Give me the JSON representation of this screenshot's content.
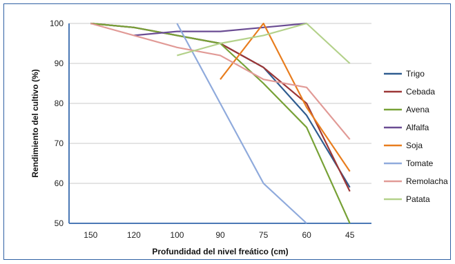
{
  "chart_data": {
    "type": "line",
    "title": "",
    "xlabel": "Profundidad del nivel freático (cm)",
    "ylabel": "Rendimiento del cultivo (%)",
    "categories": [
      "150",
      "120",
      "100",
      "90",
      "75",
      "60",
      "45"
    ],
    "ylim": [
      50,
      100
    ],
    "yticks": [
      50,
      60,
      70,
      80,
      90,
      100
    ],
    "grid": "horizontal",
    "legend_position": "right",
    "series": [
      {
        "name": "Trigo",
        "color": "#2f5c8f",
        "values": [
          100,
          99,
          97,
          95,
          89,
          77,
          59
        ]
      },
      {
        "name": "Cebada",
        "color": "#9c3636",
        "values": [
          100,
          99,
          97,
          95,
          89,
          80,
          58
        ]
      },
      {
        "name": "Avena",
        "color": "#77a136",
        "values": [
          100,
          99,
          97,
          95,
          85,
          74,
          50
        ]
      },
      {
        "name": "Alfalfa",
        "color": "#6a4c93",
        "values": [
          null,
          97,
          98,
          98,
          99,
          100,
          null
        ]
      },
      {
        "name": "Soja",
        "color": "#e87d1e",
        "values": [
          null,
          null,
          null,
          86,
          100,
          79,
          63
        ]
      },
      {
        "name": "Tomate",
        "color": "#8faadc",
        "values": [
          null,
          null,
          100,
          80,
          60,
          50,
          null
        ]
      },
      {
        "name": "Remolacha",
        "color": "#e19a96",
        "values": [
          100,
          97,
          94,
          92,
          86,
          84,
          71
        ]
      },
      {
        "name": "Patata",
        "color": "#b3d18a",
        "values": [
          null,
          null,
          92,
          95,
          97,
          100,
          90
        ]
      }
    ]
  }
}
